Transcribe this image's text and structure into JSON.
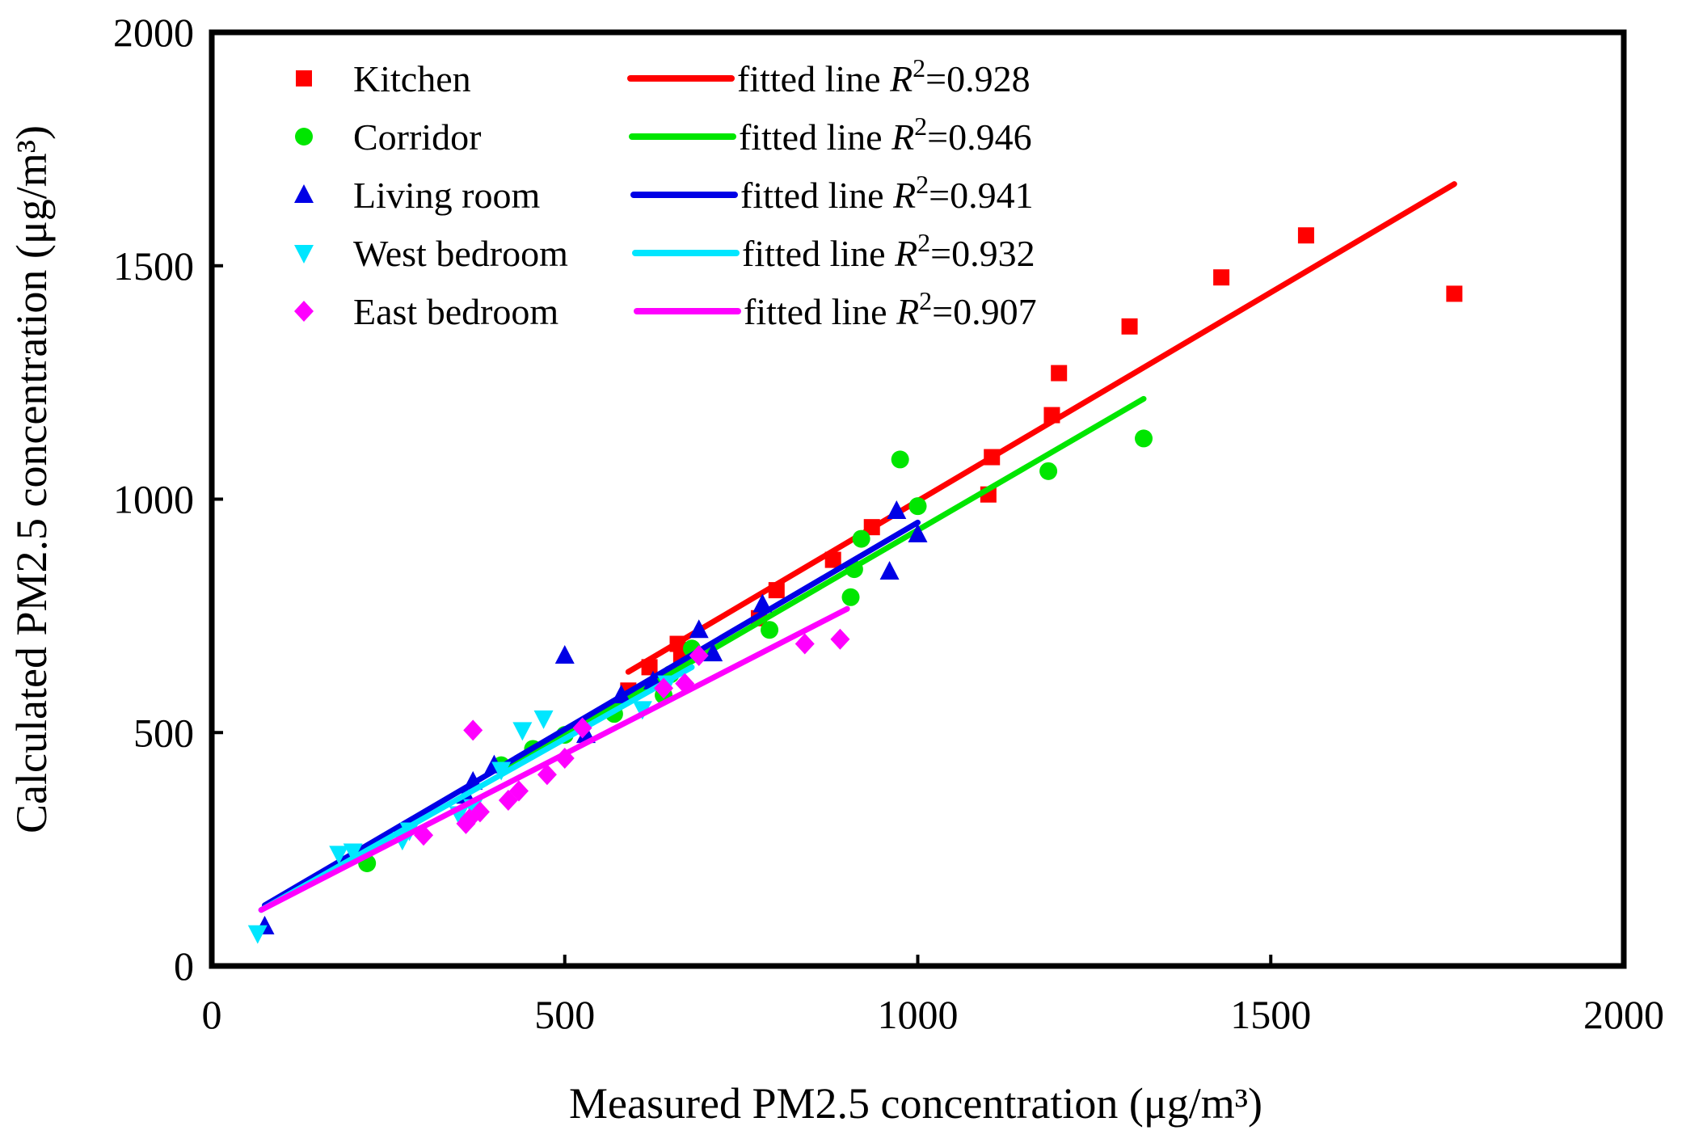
{
  "chart_data": {
    "type": "scatter",
    "xlabel": "Measured PM2.5 concentration (μg/m³)",
    "ylabel": "Calculated PM2.5 concentration (μg/m³)",
    "xlim": [
      0,
      2000
    ],
    "ylim": [
      0,
      2000
    ],
    "xticks": [
      "0",
      "500",
      "1000",
      "1500",
      "2000"
    ],
    "yticks": [
      "0",
      "500",
      "1000",
      "1500",
      "2000"
    ],
    "legend_position": "top-left",
    "series": [
      {
        "name": "Kitchen",
        "marker": "square",
        "color": "#ff0000",
        "fit_label": "fitted line",
        "r2_label": "=0.928",
        "fit": {
          "x": [
            590,
            1760
          ],
          "y": [
            630,
            1675
          ]
        },
        "points": [
          [
            590,
            590
          ],
          [
            620,
            640
          ],
          [
            660,
            690
          ],
          [
            665,
            660
          ],
          [
            775,
            745
          ],
          [
            800,
            805
          ],
          [
            880,
            870
          ],
          [
            935,
            940
          ],
          [
            1100,
            1010
          ],
          [
            1105,
            1090
          ],
          [
            1190,
            1180
          ],
          [
            1200,
            1270
          ],
          [
            1300,
            1370
          ],
          [
            1430,
            1475
          ],
          [
            1550,
            1565
          ],
          [
            1760,
            1440
          ]
        ]
      },
      {
        "name": "Corridor",
        "marker": "circle",
        "color": "#00e600",
        "fit_label": "fitted line",
        "r2_label": "=0.946",
        "fit": {
          "x": [
            410,
            1320
          ],
          "y": [
            415,
            1215
          ]
        },
        "points": [
          [
            220,
            220
          ],
          [
            410,
            430
          ],
          [
            455,
            465
          ],
          [
            500,
            495
          ],
          [
            570,
            540
          ],
          [
            640,
            580
          ],
          [
            650,
            625
          ],
          [
            680,
            680
          ],
          [
            790,
            720
          ],
          [
            905,
            790
          ],
          [
            910,
            850
          ],
          [
            920,
            915
          ],
          [
            975,
            1085
          ],
          [
            1000,
            985
          ],
          [
            1185,
            1060
          ],
          [
            1320,
            1130
          ]
        ]
      },
      {
        "name": "Living room",
        "marker": "triangle-up",
        "color": "#0000e6",
        "fit_label": "fitted line",
        "r2_label": "=0.941",
        "fit": {
          "x": [
            75,
            1000
          ],
          "y": [
            130,
            950
          ]
        },
        "points": [
          [
            75,
            85
          ],
          [
            360,
            365
          ],
          [
            370,
            395
          ],
          [
            400,
            430
          ],
          [
            500,
            665
          ],
          [
            530,
            495
          ],
          [
            580,
            580
          ],
          [
            625,
            610
          ],
          [
            690,
            720
          ],
          [
            710,
            670
          ],
          [
            780,
            775
          ],
          [
            960,
            845
          ],
          [
            970,
            975
          ],
          [
            1000,
            925
          ]
        ]
      },
      {
        "name": "West bedroom",
        "marker": "triangle-down",
        "color": "#00e6ff",
        "fit_label": "fitted line",
        "r2_label": "=0.932",
        "fit": {
          "x": [
            70,
            680
          ],
          "y": [
            120,
            640
          ]
        },
        "points": [
          [
            65,
            70
          ],
          [
            180,
            240
          ],
          [
            200,
            245
          ],
          [
            270,
            270
          ],
          [
            280,
            290
          ],
          [
            350,
            325
          ],
          [
            370,
            340
          ],
          [
            410,
            420
          ],
          [
            440,
            505
          ],
          [
            470,
            530
          ],
          [
            610,
            550
          ],
          [
            645,
            605
          ]
        ]
      },
      {
        "name": "East bedroom",
        "marker": "diamond",
        "color": "#ff00ff",
        "fit_label": "fitted line",
        "r2_label": "=0.907",
        "fit": {
          "x": [
            70,
            900
          ],
          "y": [
            120,
            765
          ]
        },
        "points": [
          [
            300,
            280
          ],
          [
            360,
            305
          ],
          [
            365,
            315
          ],
          [
            370,
            505
          ],
          [
            380,
            330
          ],
          [
            420,
            355
          ],
          [
            435,
            375
          ],
          [
            475,
            410
          ],
          [
            500,
            445
          ],
          [
            525,
            510
          ],
          [
            640,
            595
          ],
          [
            670,
            605
          ],
          [
            690,
            665
          ],
          [
            840,
            690
          ],
          [
            890,
            700
          ]
        ]
      }
    ]
  }
}
